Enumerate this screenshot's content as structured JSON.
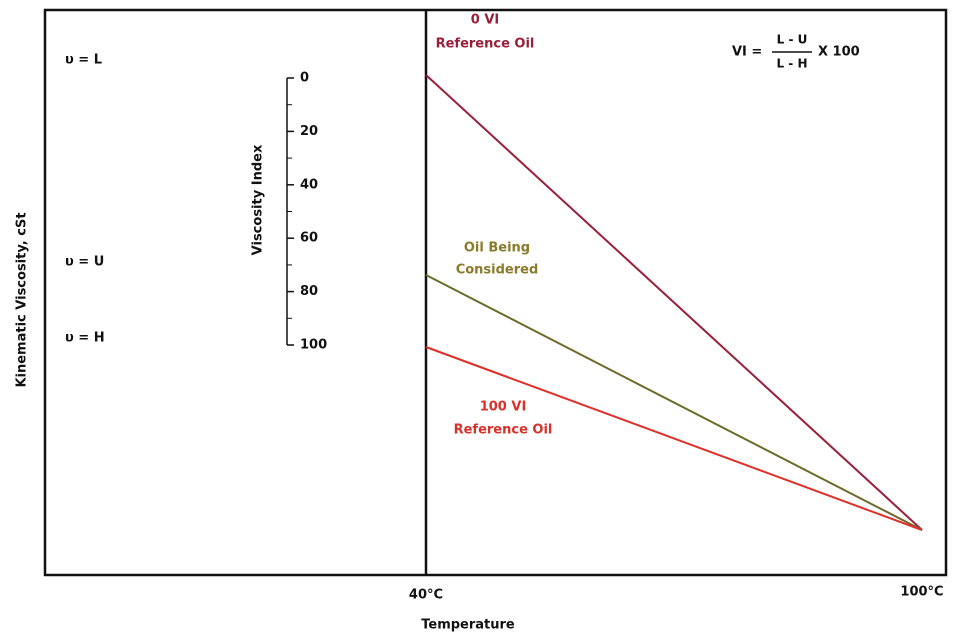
{
  "y_axis_label": "Kinematic Viscosity, cSt",
  "x_axis_label": "Temperature",
  "x_labels": [
    "40°C",
    "100°C"
  ],
  "left_labels": [
    "υ = L",
    "υ = U",
    "υ = H"
  ],
  "scale": {
    "title": "Viscosity Index",
    "ticks": [
      "0",
      "20",
      "40",
      "60",
      "80",
      "100"
    ]
  },
  "lines": [
    {
      "label": [
        "0 VI",
        "Reference Oil"
      ]
    },
    {
      "label": [
        "Oil Being",
        "Considered"
      ]
    },
    {
      "label": [
        "100 VI",
        "Reference Oil"
      ]
    }
  ],
  "formula": {
    "lhs": "VI =",
    "numerator": "L - U",
    "denominator": "L - H",
    "rhs": "X 100"
  }
}
